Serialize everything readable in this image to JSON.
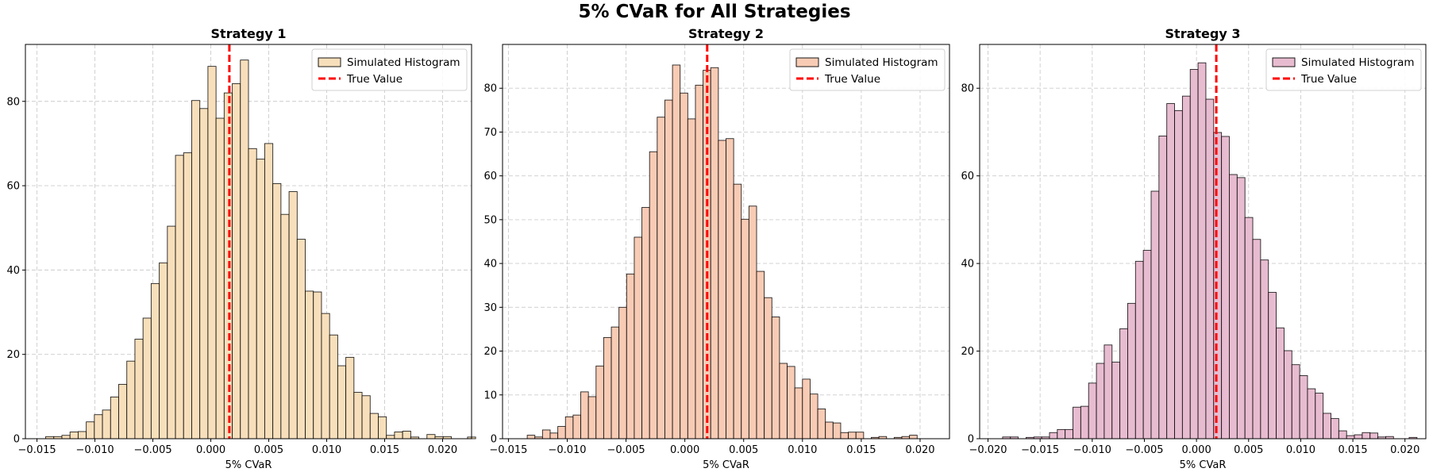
{
  "figure": {
    "title": "5% CVaR for All Strategies"
  },
  "chart_data": [
    {
      "type": "histogram",
      "title": "Strategy 1",
      "xlabel": "5% CVaR",
      "ylabel": "",
      "xlim": [
        -0.016,
        0.0225
      ],
      "ylim": [
        0,
        93.5
      ],
      "xticks": [
        -0.015,
        -0.01,
        -0.005,
        0.0,
        0.005,
        0.01,
        0.015,
        0.02
      ],
      "xtick_labels": [
        "−0.015",
        "−0.010",
        "−0.005",
        "0.000",
        "0.005",
        "0.010",
        "0.015",
        "0.020"
      ],
      "yticks": [
        0,
        20,
        40,
        60,
        80
      ],
      "grid": true,
      "legend": {
        "placement": "top-right",
        "entries": [
          "Simulated Histogram",
          "True Value"
        ]
      },
      "true_value": 0.0016,
      "bin_start": -0.01425,
      "bin_width": 0.0007,
      "counts": [
        0.5,
        0.5,
        0.8,
        1.6,
        1.7,
        4.0,
        5.7,
        6.8,
        9.9,
        12.9,
        18.4,
        23.6,
        28.6,
        36.8,
        41.7,
        50.4,
        67.2,
        67.8,
        80.2,
        78.3,
        88.3,
        76.0,
        82.0,
        84.2,
        89.8,
        68.8,
        66.3,
        70.0,
        60.5,
        53.2,
        58.6,
        47.3,
        35.0,
        34.8,
        29.7,
        24.6,
        17.3,
        19.3,
        11.0,
        10.2,
        6.0,
        5.2,
        0.8,
        1.6,
        1.8,
        0.4,
        0,
        1.0,
        0.5,
        0.5,
        0,
        0,
        0.4
      ],
      "colors": {
        "bar": "#f8dfbb",
        "true_line": "#ff0000"
      }
    },
    {
      "type": "histogram",
      "title": "Strategy 2",
      "xlabel": "5% CVaR",
      "ylabel": "",
      "xlim": [
        -0.0155,
        0.0225
      ],
      "ylim": [
        0,
        90
      ],
      "xticks": [
        -0.015,
        -0.01,
        -0.005,
        0.0,
        0.005,
        0.01,
        0.015,
        0.02
      ],
      "xtick_labels": [
        "−0.015",
        "−0.010",
        "−0.005",
        "0.000",
        "0.005",
        "0.010",
        "0.015",
        "0.020"
      ],
      "yticks": [
        0,
        10,
        20,
        30,
        40,
        50,
        60,
        70,
        80
      ],
      "grid": true,
      "legend": {
        "placement": "top-right",
        "entries": [
          "Simulated Histogram",
          "True Value"
        ]
      },
      "true_value": 0.0019,
      "bin_start": -0.0134,
      "bin_width": 0.00065,
      "counts": [
        0.8,
        0.4,
        2.0,
        1.3,
        2.8,
        5.0,
        5.4,
        10.7,
        9.6,
        16.6,
        23.1,
        25.5,
        30.0,
        37.6,
        46.0,
        52.8,
        65.5,
        73.4,
        77.3,
        85.3,
        78.9,
        73.0,
        80.7,
        84.1,
        84.7,
        68.1,
        68.5,
        58.1,
        50.1,
        53.1,
        38.2,
        32.2,
        27.8,
        17.2,
        16.5,
        11.6,
        13.6,
        10.2,
        6.8,
        3.8,
        3.6,
        1.4,
        1.5,
        1.5,
        0,
        0.3,
        0.5,
        0,
        0.3,
        0.5,
        0.8
      ],
      "colors": {
        "bar": "#f8cbb5",
        "true_line": "#ff0000"
      }
    },
    {
      "type": "histogram",
      "title": "Strategy 3",
      "xlabel": "5% CVaR",
      "ylabel": "",
      "xlim": [
        -0.0208,
        0.022
      ],
      "ylim": [
        0,
        90
      ],
      "xticks": [
        -0.02,
        -0.015,
        -0.01,
        -0.005,
        0.0,
        0.005,
        0.01,
        0.015,
        0.02
      ],
      "xtick_labels": [
        "−0.020",
        "−0.015",
        "−0.010",
        "−0.005",
        "0.000",
        "0.005",
        "0.010",
        "0.015",
        "0.020"
      ],
      "yticks": [
        0,
        20,
        40,
        60,
        80
      ],
      "grid": true,
      "legend": {
        "placement": "top-right",
        "entries": [
          "Simulated Histogram",
          "True Value"
        ]
      },
      "true_value": 0.0019,
      "bin_start": -0.0186,
      "bin_width": 0.00075,
      "counts": [
        0.4,
        0.4,
        0,
        0.3,
        0.4,
        0.4,
        1.4,
        2.1,
        2.1,
        7.2,
        7.4,
        12.7,
        17.2,
        21.4,
        17.5,
        25.1,
        30.9,
        40.5,
        43.0,
        56.5,
        69.1,
        76.5,
        74.9,
        78.2,
        84.3,
        85.8,
        77.5,
        69.9,
        69.0,
        60.3,
        59.6,
        50.5,
        45.5,
        40.8,
        33.4,
        25.3,
        20.1,
        16.9,
        14.4,
        11.4,
        10.4,
        5.8,
        4.6,
        1.8,
        0.7,
        0.9,
        1.4,
        1.3,
        0.4,
        0.5,
        0,
        0,
        0.3
      ],
      "colors": {
        "bar": "#e8bcd0",
        "true_line": "#ff0000"
      }
    }
  ]
}
